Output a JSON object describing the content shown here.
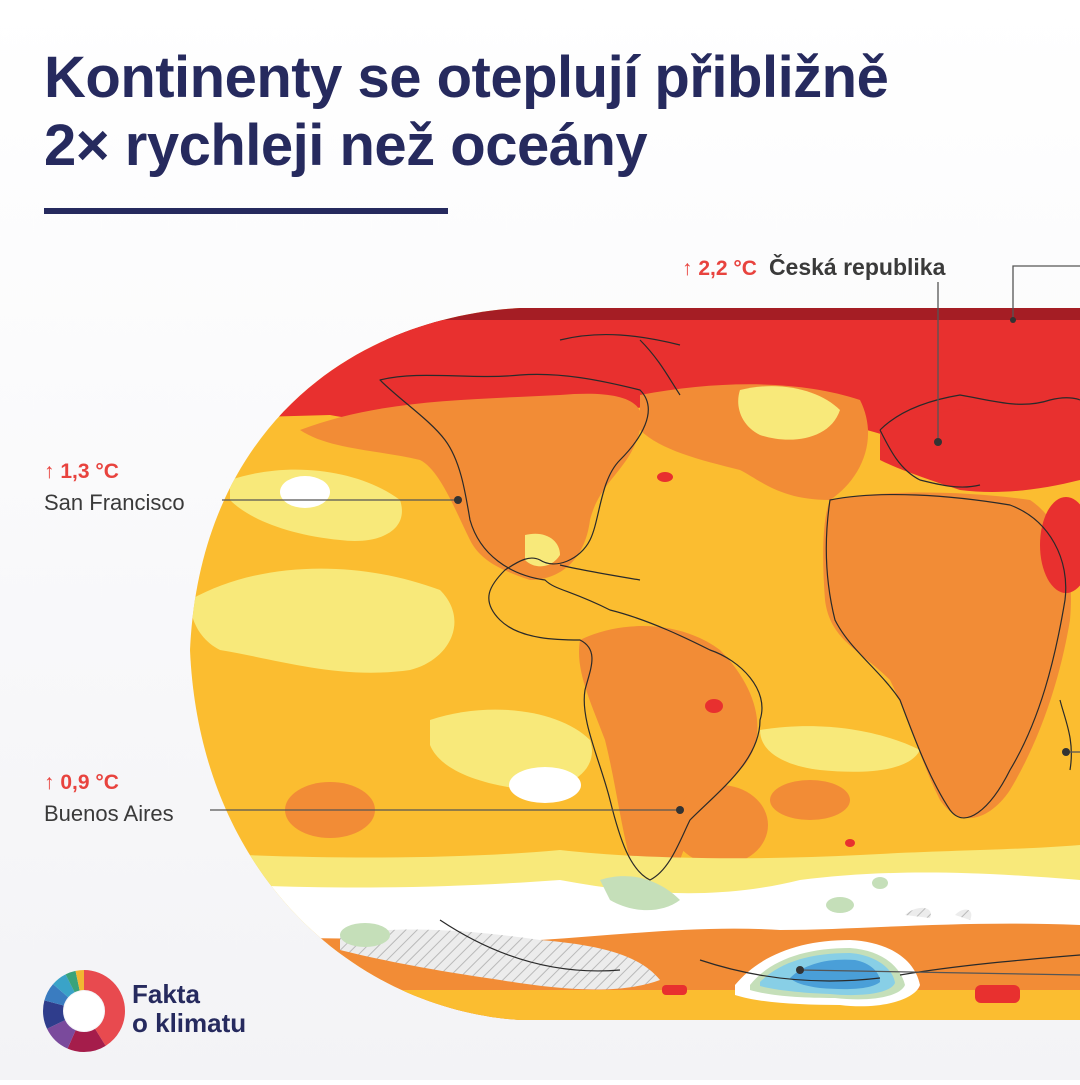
{
  "title": {
    "line1": "Kontinenty se oteplují přibližně",
    "line2": "2× rychleji než oceány"
  },
  "callouts": {
    "czech": {
      "delta": "↑ 2,2 °C",
      "place": "Česká republika"
    },
    "san_francisco": {
      "delta": "↑ 1,3 °C",
      "place": "San Francisco"
    },
    "buenos_aires": {
      "delta": "↑ 0,9 °C",
      "place": "Buenos Aires"
    }
  },
  "legend_colors": {
    "dark_red": "#a51d24",
    "red": "#e8302f",
    "orange": "#f28c36",
    "amber": "#fbbd30",
    "yellow": "#f8e97a",
    "white": "#ffffff",
    "light_green": "#c5dfb9",
    "light_blue": "#88cfe6",
    "blue": "#4a9fd8"
  },
  "brand": {
    "name_line1": "Fakta",
    "name_line2": "o klimatu",
    "color": "#262a5e"
  }
}
